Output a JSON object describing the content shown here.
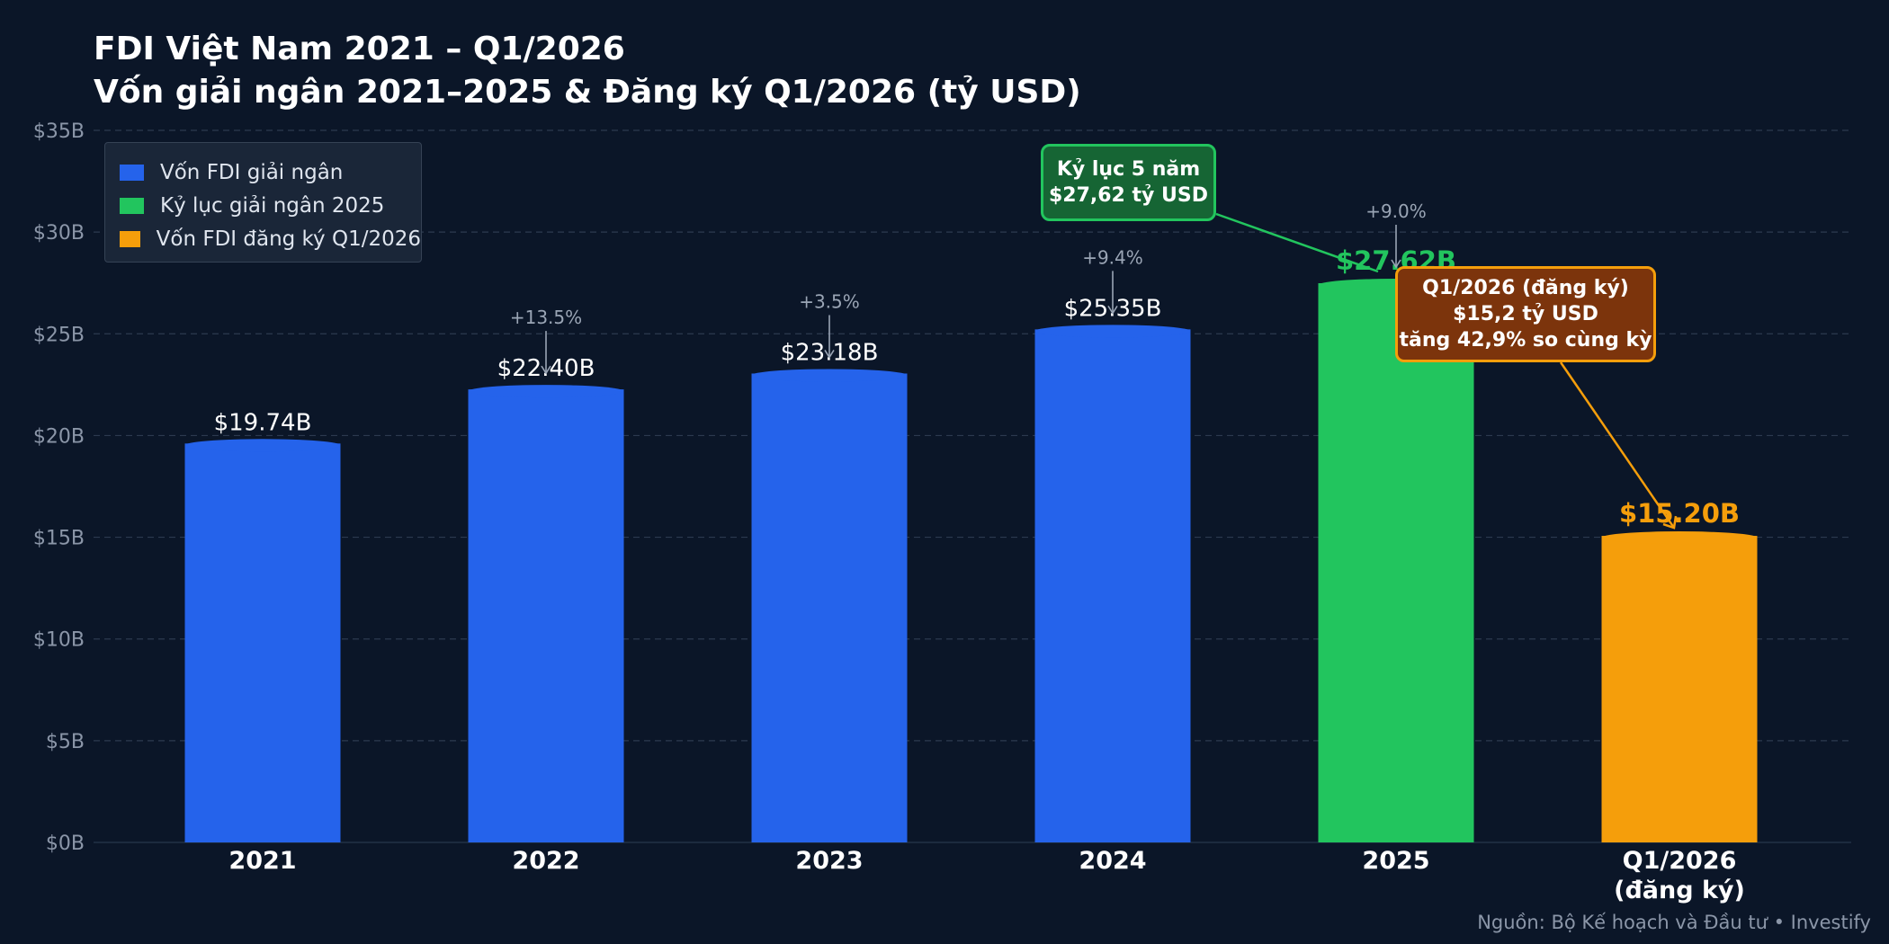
{
  "header": {
    "title_line1": "FDI Việt Nam 2021 – Q1/2026",
    "title_line2": "Vốn giải ngân 2021–2025 & Đăng ký Q1/2026 (tỷ USD)"
  },
  "legend": {
    "placement": "top-left",
    "items": [
      {
        "label": "Vốn FDI giải ngân",
        "color": "#2563eb"
      },
      {
        "label": "Kỷ lục giải ngân 2025",
        "color": "#22c55e"
      },
      {
        "label": "Vốn FDI đăng ký Q1/2026",
        "color": "#f59e0b"
      }
    ]
  },
  "callouts": {
    "record": {
      "line1": "Kỷ lục 5 năm",
      "line2": "$27,62 tỷ USD"
    },
    "q1": {
      "line1": "Q1/2026 (đăng ký)",
      "line2": "$15,2 tỷ USD",
      "line3": "tăng 42,9% so cùng kỳ"
    }
  },
  "source": "Nguồn: Bộ Kế hoạch và Đầu tư  •  Investify",
  "chart_data": {
    "type": "bar",
    "categories": [
      "2021",
      "2022",
      "2023",
      "2024",
      "2025",
      "Q1/2026\n(đăng ký)"
    ],
    "values": [
      19.74,
      22.4,
      23.18,
      25.35,
      27.62,
      15.2
    ],
    "value_labels": [
      "$19.74B",
      "$22.40B",
      "$23.18B",
      "$25.35B",
      "$27.62B",
      "$15.20B"
    ],
    "growth_labels": [
      "",
      "+13.5%",
      "+3.5%",
      "+9.4%",
      "+9.0%",
      ""
    ],
    "bar_colors": [
      "#2563eb",
      "#2563eb",
      "#2563eb",
      "#2563eb",
      "#22c55e",
      "#f59e0b"
    ],
    "value_label_colors": [
      "#ffffff",
      "#ffffff",
      "#ffffff",
      "#ffffff",
      "#22c55e",
      "#f59e0b"
    ],
    "ylim": [
      0,
      35
    ],
    "yticks": [
      0,
      5,
      10,
      15,
      20,
      25,
      30,
      35
    ],
    "ytick_labels": [
      "$0B",
      "$5B",
      "$10B",
      "$15B",
      "$20B",
      "$25B",
      "$30B",
      "$35B"
    ],
    "grid": true,
    "xlabel": "",
    "ylabel": ""
  }
}
